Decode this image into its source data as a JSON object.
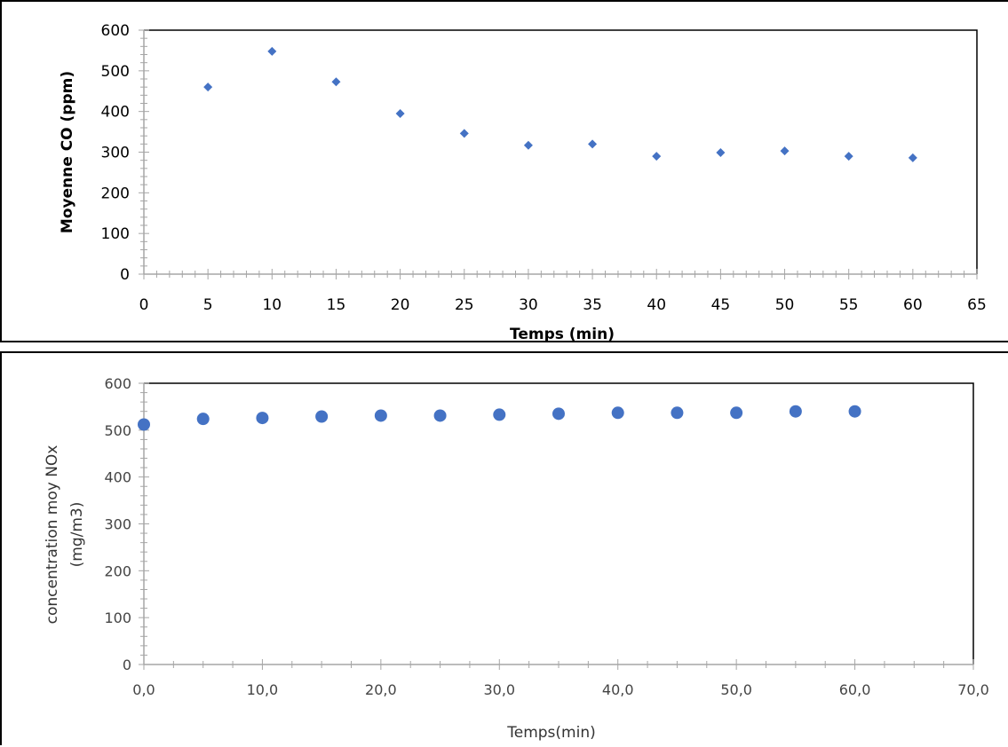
{
  "chart_data": [
    {
      "type": "scatter",
      "title": "",
      "xlabel": "Temps (min)",
      "ylabel": "Moyenne CO (ppm)",
      "xlim": [
        0,
        65
      ],
      "ylim": [
        0,
        600
      ],
      "x_ticks": [
        "0",
        "5",
        "10",
        "15",
        "20",
        "25",
        "30",
        "35",
        "40",
        "45",
        "50",
        "55",
        "60",
        "65"
      ],
      "y_ticks": [
        "0",
        "100",
        "200",
        "300",
        "400",
        "500",
        "600"
      ],
      "marker": "diamond",
      "color": "#4472c4",
      "grid": false,
      "series": [
        {
          "x": [
            5,
            10,
            15,
            20,
            25,
            30,
            35,
            40,
            45,
            50,
            55,
            60
          ],
          "y": [
            460,
            548,
            473,
            395,
            346,
            317,
            320,
            290,
            299,
            303,
            290,
            286
          ]
        }
      ]
    },
    {
      "type": "scatter",
      "title": "",
      "xlabel": "Temps(min)",
      "ylabel": [
        "concentration moy NOx",
        "(mg/m3)"
      ],
      "xlim": [
        0,
        70
      ],
      "ylim": [
        0,
        600
      ],
      "x_ticks": [
        "0,0",
        "10,0",
        "20,0",
        "30,0",
        "40,0",
        "50,0",
        "60,0",
        "70,0"
      ],
      "y_ticks": [
        "0",
        "100",
        "200",
        "300",
        "400",
        "500",
        "600"
      ],
      "marker": "circle",
      "color": "#4472c4",
      "grid": false,
      "series": [
        {
          "x": [
            0,
            5,
            10,
            15,
            20,
            25,
            30,
            35,
            40,
            45,
            50,
            55,
            60
          ],
          "y": [
            512,
            524,
            526,
            529,
            531,
            531,
            533,
            535,
            537,
            537,
            537,
            540,
            540
          ]
        }
      ]
    }
  ]
}
